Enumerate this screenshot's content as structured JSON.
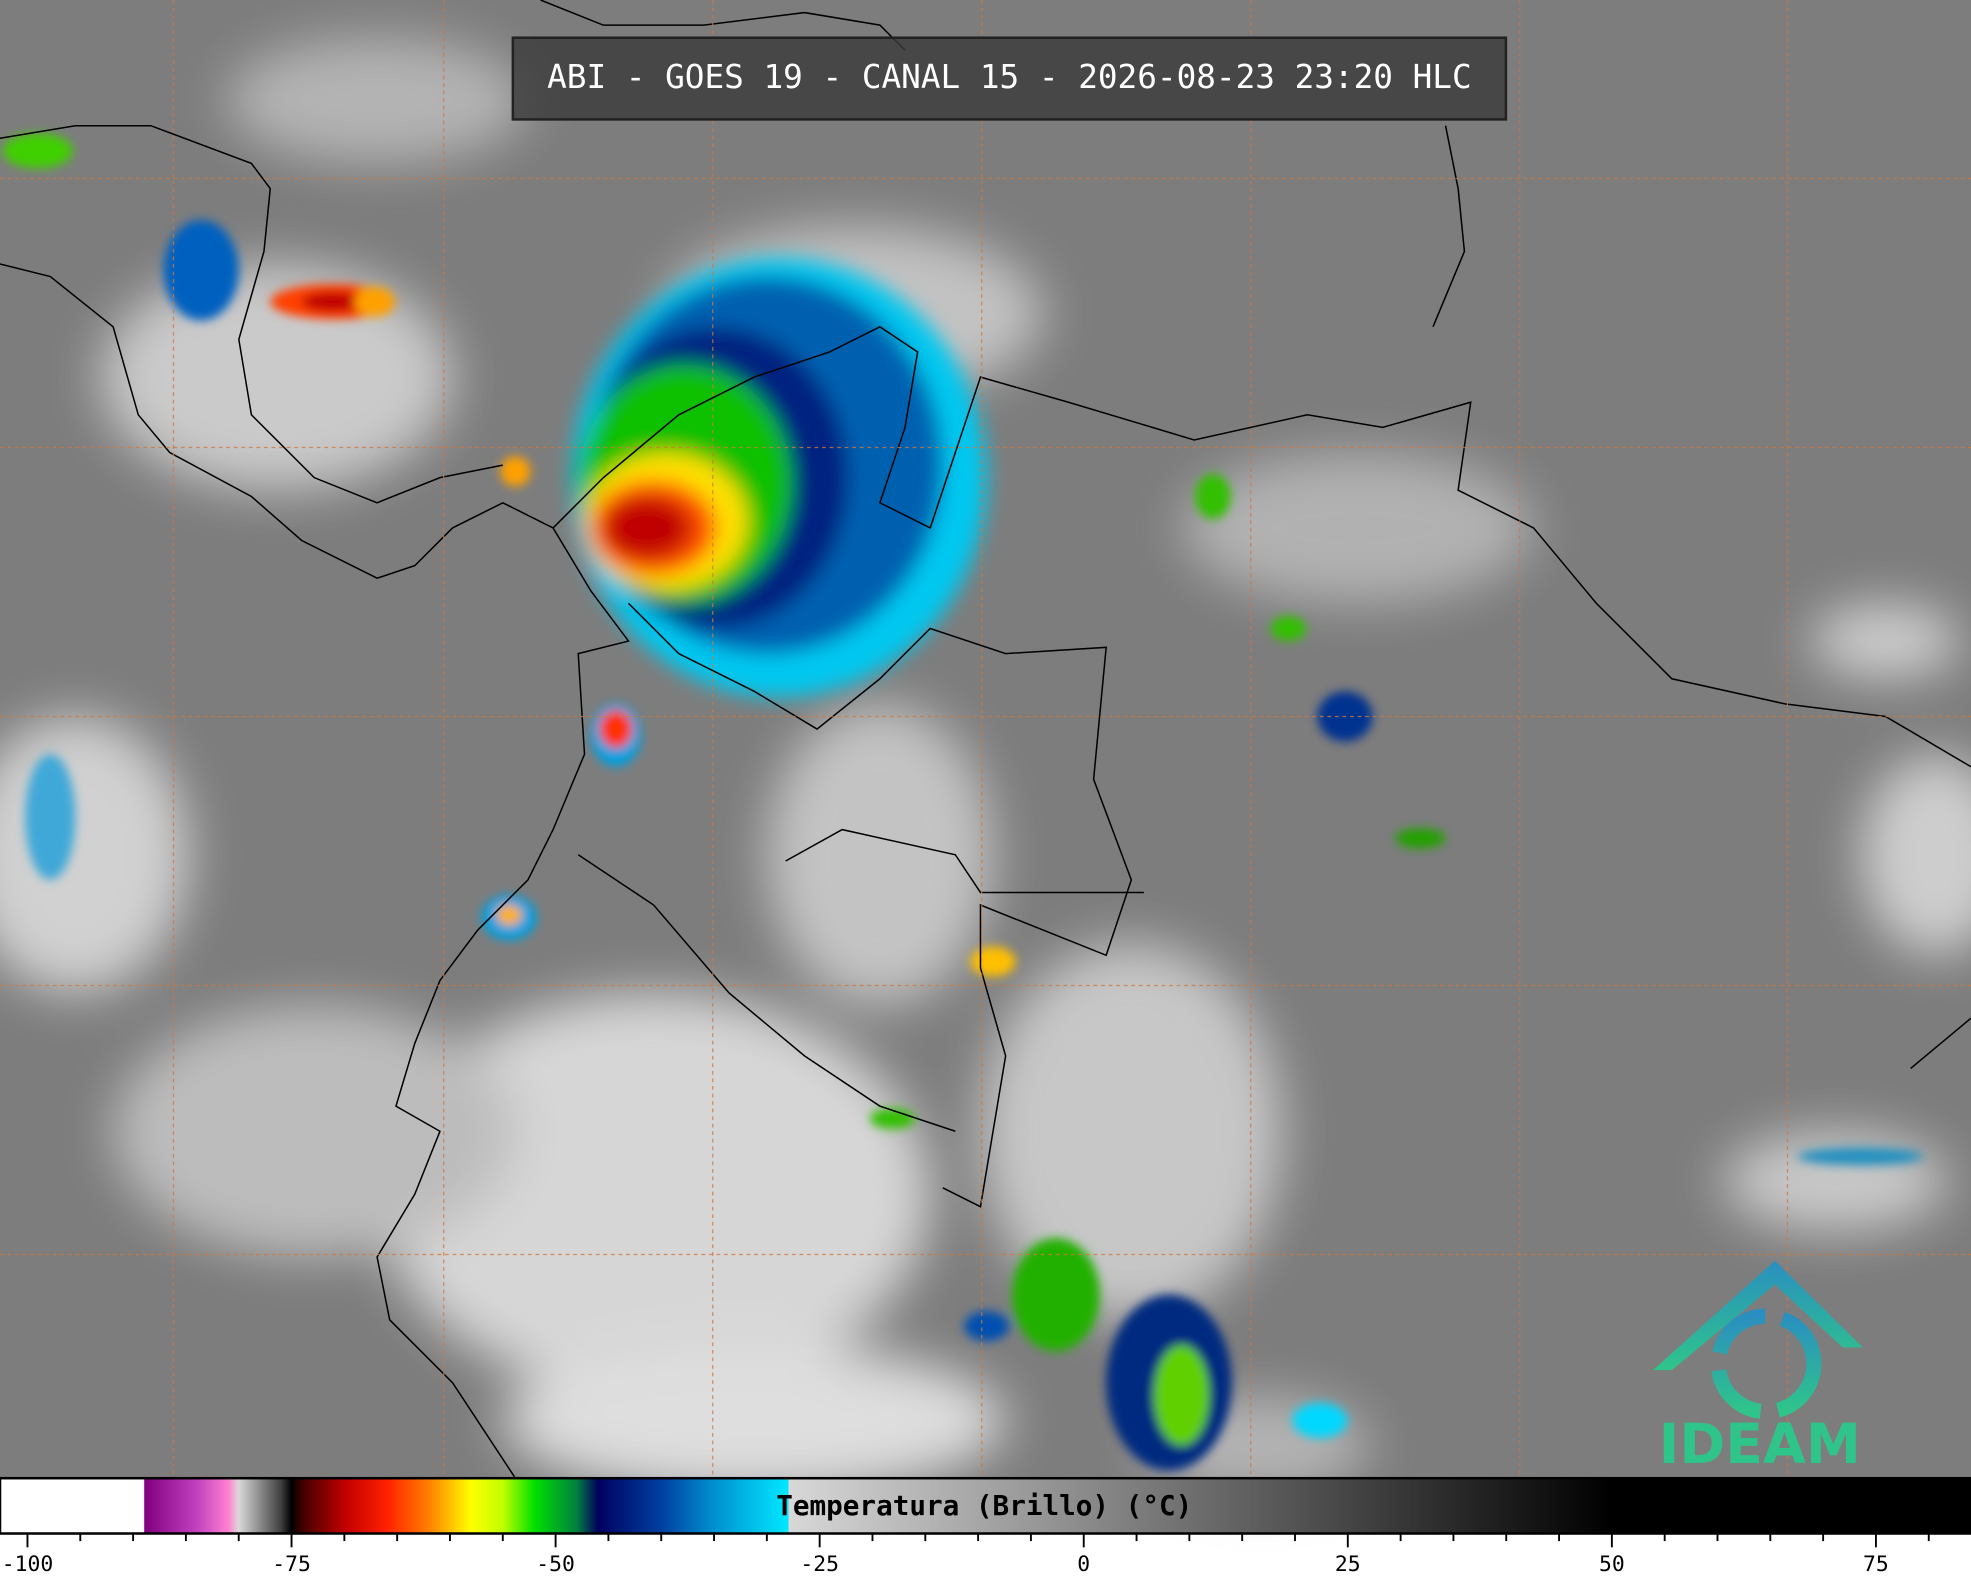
{
  "title": "ABI - GOES 19 - CANAL 15 - 2026-08-23 23:20 HLC",
  "logo": "IDEAM",
  "colorbar": {
    "type": "colorbar",
    "label": "Temperatura (Brillo) (°C)",
    "xlim": [
      -102.6,
      84
    ],
    "xticks": [
      -100,
      -75,
      -50,
      -25,
      0,
      25,
      50,
      75
    ],
    "xminorticks": [
      -95,
      -90,
      -85,
      -80,
      -70,
      -65,
      -60,
      -55,
      -45,
      -40,
      -35,
      -30,
      -20,
      -15,
      -10,
      -5,
      5,
      10,
      15,
      20,
      30,
      35,
      40,
      45,
      55,
      60,
      65,
      70,
      80
    ],
    "colormap": [
      [
        -89,
        "#ffffff"
      ],
      [
        -88.9,
        "#800080"
      ],
      [
        -84,
        "#c040c0"
      ],
      [
        -81,
        "#ff80d0"
      ],
      [
        -80,
        "#d8d8d8"
      ],
      [
        -76,
        "#404040"
      ],
      [
        -75,
        "#000000"
      ],
      [
        -74,
        "#400000"
      ],
      [
        -70,
        "#c00000"
      ],
      [
        -66,
        "#ff2000"
      ],
      [
        -62,
        "#ff8000"
      ],
      [
        -58,
        "#ffff00"
      ],
      [
        -55,
        "#c0ff00"
      ],
      [
        -52,
        "#00e000"
      ],
      [
        -48,
        "#008040"
      ],
      [
        -46,
        "#000060"
      ],
      [
        -40,
        "#0040a0"
      ],
      [
        -35,
        "#0090d0"
      ],
      [
        -28,
        "#00e8ff"
      ],
      [
        -27.9,
        "#d8d8d8"
      ],
      [
        50,
        "#000000"
      ]
    ]
  }
}
